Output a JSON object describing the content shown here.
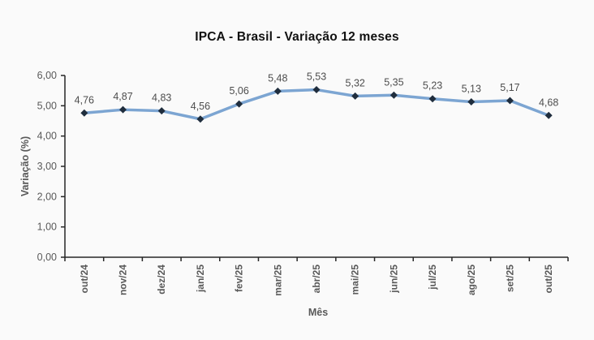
{
  "chart_data": {
    "type": "line",
    "title": "IPCA - Brasil - Variação 12 meses",
    "xlabel": "Mês",
    "ylabel": "Variação (%)",
    "categories": [
      "out/24",
      "nov/24",
      "dez/24",
      "jan/25",
      "fev/25",
      "mar/25",
      "abr/25",
      "mai/25",
      "jun/25",
      "jul/25",
      "ago/25",
      "set/25",
      "out/25"
    ],
    "values": [
      4.76,
      4.87,
      4.83,
      4.56,
      5.06,
      5.48,
      5.53,
      5.32,
      5.35,
      5.23,
      5.13,
      5.17,
      4.68
    ],
    "values_display": [
      "4,76",
      "4,87",
      "4,83",
      "4,56",
      "5,06",
      "5,48",
      "5,53",
      "5,32",
      "5,35",
      "5,23",
      "5,13",
      "5,17",
      "4,68"
    ],
    "ylim": [
      0,
      6
    ],
    "ytick_labels": [
      "0,00",
      "1,00",
      "2,00",
      "3,00",
      "4,00",
      "5,00",
      "6,00"
    ],
    "grid": "off",
    "legend": "none",
    "marker_shape": "diamond",
    "colors": {
      "line": "#7CA5D2",
      "marker": "#1F2D3D",
      "axis": "#262626",
      "tick_label": "#595959",
      "data_label": "#4D4D4D",
      "background": "#FAFAFA"
    }
  }
}
